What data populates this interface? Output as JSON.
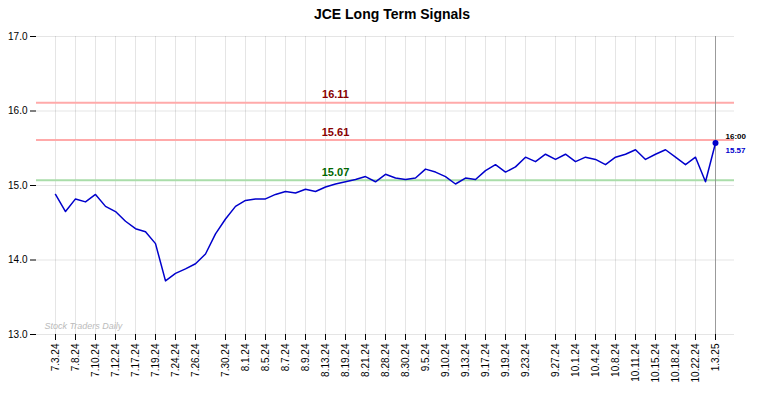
{
  "chart_data": {
    "type": "line",
    "title": "JCE Long Term Signals",
    "color": "#0000cc",
    "categories": [
      "7.3.24",
      null,
      "7.8.24",
      null,
      "7.10.24",
      null,
      "7.12.24",
      null,
      "7.17.24",
      null,
      "7.19.24",
      null,
      "7.24.24",
      null,
      "7.26.24",
      null,
      null,
      "7.30.24",
      null,
      "8.1.24",
      null,
      "8.5.24",
      null,
      "8.7.24",
      null,
      "8.9.24",
      null,
      "8.13.24",
      null,
      "8.19.24",
      null,
      "8.21.24",
      null,
      "8.28.24",
      null,
      "8.30.24",
      null,
      "9.5.24",
      null,
      "9.10.24",
      null,
      "9.13.24",
      null,
      "9.17.24",
      null,
      "9.19.24",
      null,
      "9.23.24",
      null,
      null,
      "9.27.24",
      null,
      "10.1.24",
      null,
      "10.4.24",
      null,
      "10.8.24",
      null,
      "10.11.24",
      null,
      "10.15.24",
      null,
      "10.18.24",
      null,
      "10.22.24",
      null,
      "1.3.25"
    ],
    "values": [
      14.88,
      14.65,
      14.82,
      14.78,
      14.88,
      14.72,
      14.65,
      14.52,
      14.42,
      14.38,
      14.22,
      13.72,
      13.82,
      13.88,
      13.95,
      14.08,
      14.35,
      14.55,
      14.72,
      14.8,
      14.82,
      14.82,
      14.88,
      14.92,
      14.9,
      14.95,
      14.92,
      14.98,
      15.02,
      15.05,
      15.08,
      15.12,
      15.05,
      15.15,
      15.1,
      15.08,
      15.1,
      15.22,
      15.18,
      15.12,
      15.02,
      15.1,
      15.08,
      15.2,
      15.28,
      15.18,
      15.25,
      15.38,
      15.32,
      15.42,
      15.35,
      15.42,
      15.32,
      15.38,
      15.35,
      15.28,
      15.38,
      15.42,
      15.48,
      15.35,
      15.42,
      15.48,
      15.38,
      15.28,
      15.38,
      15.05,
      15.57
    ],
    "ylim": [
      13,
      17
    ],
    "yticks": [
      13,
      14,
      15,
      16,
      17
    ],
    "grid": true,
    "reference_lines": [
      {
        "y": 16.11,
        "label": "16.11",
        "color": "#ffaaaa",
        "label_color": "#880000"
      },
      {
        "y": 15.61,
        "label": "15.61",
        "color": "#ffaaaa",
        "label_color": "#880000"
      },
      {
        "y": 15.07,
        "label": "15.07",
        "color": "#aaddaa",
        "label_color": "#006600"
      }
    ],
    "last_point_line_color": "#888888",
    "annotations": [
      {
        "text": "16:00",
        "color": "#000000"
      },
      {
        "text": "15.57",
        "color": "#0000cc"
      }
    ],
    "watermark": {
      "text": "Stock Traders Daily",
      "color": "#bbbbbb"
    }
  }
}
